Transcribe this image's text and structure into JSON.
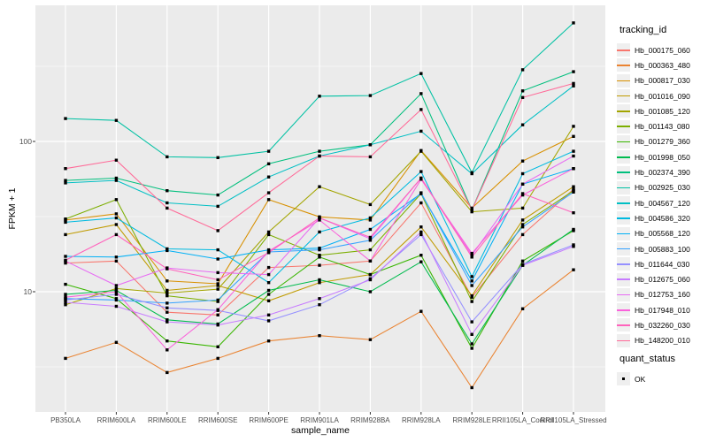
{
  "axes": {
    "x_label": "sample_name",
    "y_label": "FPKM + 1",
    "y_tick_labels": [
      "100",
      "10"
    ]
  },
  "legend": {
    "tracking_title": "tracking_id",
    "quant_status": {
      "title": "quant_status",
      "items": [
        "OK"
      ]
    }
  },
  "colors": {
    "panel_bg": "#EBEBEB",
    "grid": "#FFFFFF",
    "marker": "#000000",
    "tick_text": "#4d4d4d",
    "tick_mark": "#333333"
  },
  "chart_data": {
    "type": "line",
    "y_scale": "log10",
    "xlabel": "sample_name",
    "ylabel": "FPKM + 1",
    "ylim": [
      1.7,
      800
    ],
    "y_major_ticks": [
      10,
      100
    ],
    "y_minor_ticks": [
      3.162,
      31.62,
      316.2
    ],
    "grid": "on",
    "legend_position": "right",
    "marker": "filled-square",
    "marker_meaning": "quant_status OK",
    "categories": [
      "PB350LA",
      "RRIM600LA",
      "RRIM600LE",
      "RRIM600SE",
      "RRIM600PE",
      "RRIM901LA",
      "RRIM928BA",
      "RRIM928LA",
      "RRIM928LE",
      "RRII105LA_Control",
      "RRII105LA_Stressed"
    ],
    "series": [
      {
        "name": "Hb_000175_060",
        "color": "#F8766D",
        "values": [
          15.5,
          16,
          7.3,
          7,
          14.5,
          15,
          16,
          39,
          9.2,
          24,
          48
        ]
      },
      {
        "name": "Hb_000363_480",
        "color": "#EA8331",
        "values": [
          3.6,
          4.6,
          2.9,
          3.6,
          4.7,
          5.1,
          4.8,
          7.4,
          2.3,
          7.7,
          14
        ]
      },
      {
        "name": "Hb_000817_030",
        "color": "#D89000",
        "values": [
          30,
          33,
          11.8,
          11.3,
          41,
          31.5,
          30,
          87,
          36,
          74,
          108
        ]
      },
      {
        "name": "Hb_001016_090",
        "color": "#C09B00",
        "values": [
          24,
          28,
          10.2,
          11,
          8.7,
          11.5,
          13,
          27,
          9.4,
          30,
          50
        ]
      },
      {
        "name": "Hb_001085_120",
        "color": "#A3A500",
        "values": [
          8.2,
          10.5,
          9.8,
          10.4,
          25,
          50,
          38,
          86,
          34,
          36,
          126
        ]
      },
      {
        "name": "Hb_001143_080",
        "color": "#7CAE00",
        "values": [
          30.5,
          41,
          9.4,
          8.6,
          24,
          17.5,
          19,
          45,
          8.6,
          28,
          47
        ]
      },
      {
        "name": "Hb_001279_360",
        "color": "#39B600",
        "values": [
          11.2,
          9,
          4.7,
          4.3,
          9.6,
          17,
          13,
          17.5,
          4.2,
          16,
          25.5
        ]
      },
      {
        "name": "Hb_001998_050",
        "color": "#00BB4E",
        "values": [
          9.6,
          10.2,
          6.5,
          6.1,
          10.2,
          12,
          10,
          15.8,
          4.5,
          15,
          26
        ]
      },
      {
        "name": "Hb_002374_390",
        "color": "#00BF7D",
        "values": [
          55,
          57,
          47,
          44,
          71,
          86,
          95,
          208,
          35,
          217,
          291
        ]
      },
      {
        "name": "Hb_002925_030",
        "color": "#00C1A3",
        "values": [
          142,
          138,
          79,
          78,
          86,
          200,
          202,
          283,
          62,
          300,
          615
        ]
      },
      {
        "name": "Hb_004567_120",
        "color": "#00BFC4",
        "values": [
          53,
          55,
          39,
          37,
          58,
          80,
          95,
          117,
          61,
          129,
          234
        ]
      },
      {
        "name": "Hb_004586_320",
        "color": "#00BAE0",
        "values": [
          29,
          31,
          19.3,
          19,
          11.5,
          25,
          31,
          63,
          12.6,
          61,
          86
        ]
      },
      {
        "name": "Hb_005568_120",
        "color": "#00B0F6",
        "values": [
          17.2,
          17,
          18.8,
          16.5,
          19,
          19.5,
          26,
          45,
          11.8,
          52,
          66
        ]
      },
      {
        "name": "Hb_005883_100",
        "color": "#35A2FF",
        "values": [
          9,
          8.8,
          8.4,
          8.8,
          18.4,
          19,
          22,
          45.5,
          11,
          27,
          46
        ]
      },
      {
        "name": "Hb_011644_030",
        "color": "#9590FF",
        "values": [
          8.8,
          9.6,
          7.8,
          7.5,
          6.4,
          8.2,
          12.2,
          24,
          6.3,
          15.2,
          20.5
        ]
      },
      {
        "name": "Hb_012675_060",
        "color": "#C77CFF",
        "values": [
          8.5,
          8,
          6.3,
          6,
          7,
          9,
          12,
          25,
          5.2,
          15,
          20
        ]
      },
      {
        "name": "Hb_012753_160",
        "color": "#E76BF3",
        "values": [
          16,
          11,
          14.4,
          13.4,
          13,
          31,
          22.5,
          57,
          17.5,
          52,
          80
        ]
      },
      {
        "name": "Hb_017948_010",
        "color": "#FA62DB",
        "values": [
          9.2,
          10,
          4.1,
          7.6,
          18.6,
          30,
          16,
          56,
          18,
          44,
          66
        ]
      },
      {
        "name": "Hb_032260_030",
        "color": "#FF62BC",
        "values": [
          16.2,
          24,
          14.2,
          12,
          18.2,
          31,
          23,
          57,
          17,
          45,
          33.5
        ]
      },
      {
        "name": "Hb_148200_010",
        "color": "#FF6A98",
        "values": [
          66,
          75,
          36,
          25.5,
          45.5,
          80,
          79,
          163,
          35,
          196,
          243
        ]
      }
    ]
  }
}
